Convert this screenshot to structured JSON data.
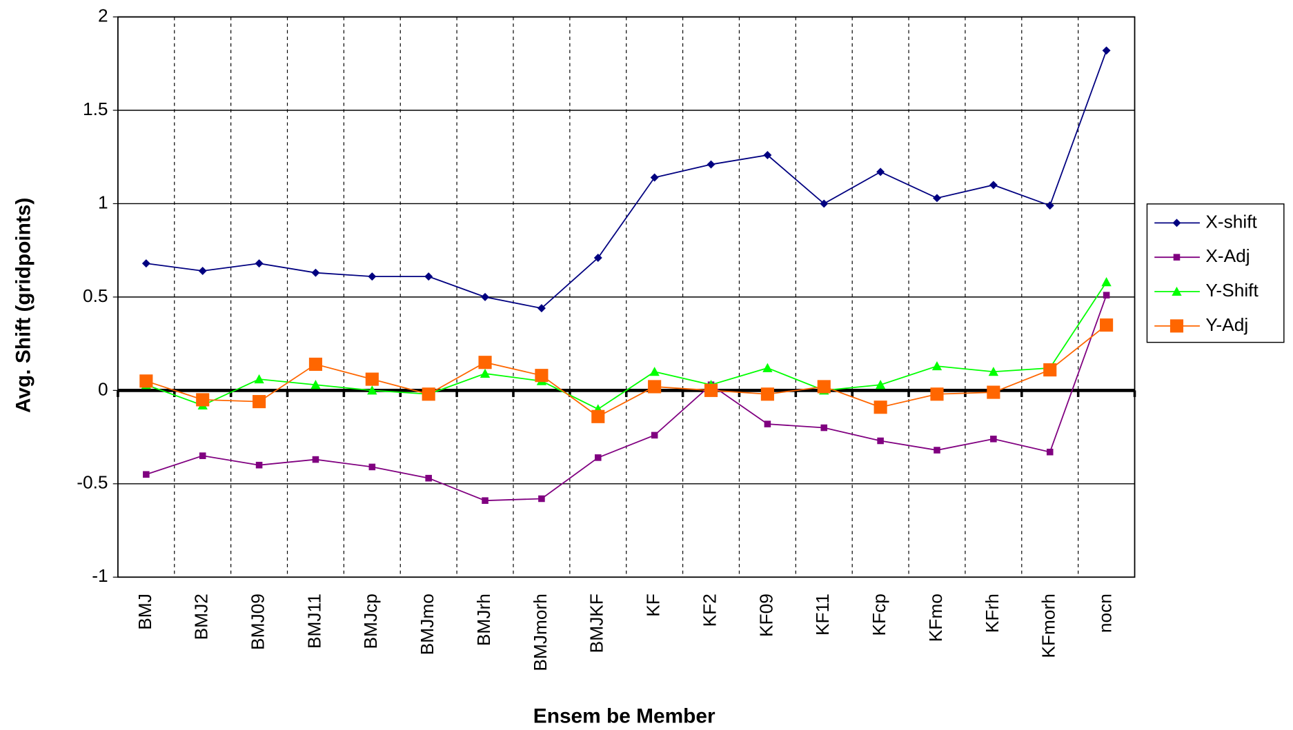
{
  "chart_data": {
    "type": "line",
    "x_label": "Ensem be Member",
    "y_label": "Avg. Shift (gridpoints)",
    "categories": [
      "BMJ",
      "BMJ2",
      "BMJ09",
      "BMJ11",
      "BMJcp",
      "BMJmo",
      "BMJrh",
      "BMJmorh",
      "BMJKF",
      "KF",
      "KF2",
      "KF09",
      "KF11",
      "KFcp",
      "KFmo",
      "KFrh",
      "KFmorh",
      "nocn"
    ],
    "series": [
      {
        "name": "X-shift",
        "color": "#000080",
        "marker": "diamond",
        "values": [
          0.68,
          0.64,
          0.68,
          0.63,
          0.61,
          0.61,
          0.5,
          0.44,
          0.71,
          1.14,
          1.21,
          1.26,
          1.0,
          1.17,
          1.03,
          1.1,
          0.99,
          1.82
        ]
      },
      {
        "name": "X-Adj",
        "color": "#800080",
        "marker": "small-square",
        "values": [
          -0.45,
          -0.35,
          -0.4,
          -0.37,
          -0.41,
          -0.47,
          -0.59,
          -0.58,
          -0.36,
          -0.24,
          0.03,
          -0.18,
          -0.2,
          -0.27,
          -0.32,
          -0.26,
          -0.33,
          0.51
        ]
      },
      {
        "name": "Y-Shift",
        "color": "#00ff00",
        "marker": "triangle",
        "values": [
          0.03,
          -0.08,
          0.06,
          0.03,
          0.0,
          -0.02,
          0.09,
          0.05,
          -0.1,
          0.1,
          0.03,
          0.12,
          0.0,
          0.03,
          0.13,
          0.1,
          0.12,
          0.58
        ]
      },
      {
        "name": "Y-Adj",
        "color": "#ff6600",
        "marker": "square",
        "values": [
          0.05,
          -0.05,
          -0.06,
          0.14,
          0.06,
          -0.02,
          0.15,
          0.08,
          -0.14,
          0.02,
          0.0,
          -0.02,
          0.02,
          -0.09,
          -0.02,
          -0.01,
          0.11,
          0.35
        ]
      }
    ],
    "ylim": [
      -1,
      2
    ],
    "yticks": [
      -1,
      -0.5,
      0,
      0.5,
      1,
      1.5,
      2
    ],
    "grid": true,
    "legend": "right"
  }
}
